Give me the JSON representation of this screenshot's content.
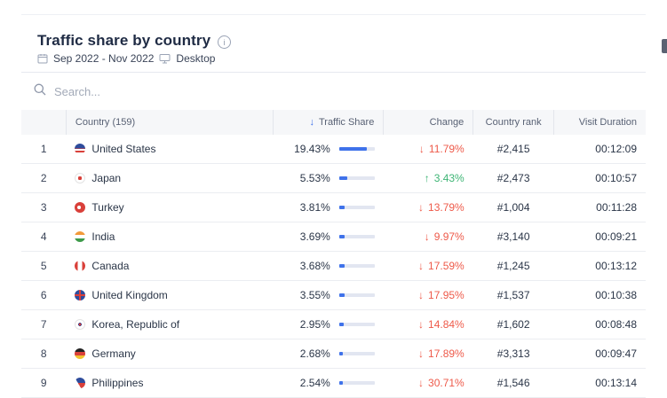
{
  "header": {
    "title": "Traffic share by country",
    "date_range": "Sep 2022 - Nov 2022",
    "device": "Desktop"
  },
  "search": {
    "placeholder": "Search..."
  },
  "table": {
    "columns": [
      "",
      "Country (159)",
      "Traffic Share",
      "Change",
      "Country rank",
      "Visit Duration"
    ],
    "sort_arrow": "↓",
    "rows": [
      {
        "idx": "1",
        "country": "United States",
        "flag": "us",
        "share": "19.43%",
        "share_value": 19.43,
        "change": "11.79%",
        "direction": "down",
        "rank": "#2,415",
        "visit": "00:12:09"
      },
      {
        "idx": "2",
        "country": "Japan",
        "flag": "jp",
        "share": "5.53%",
        "share_value": 5.53,
        "change": "3.43%",
        "direction": "up",
        "rank": "#2,473",
        "visit": "00:10:57"
      },
      {
        "idx": "3",
        "country": "Turkey",
        "flag": "tr",
        "share": "3.81%",
        "share_value": 3.81,
        "change": "13.79%",
        "direction": "down",
        "rank": "#1,004",
        "visit": "00:11:28"
      },
      {
        "idx": "4",
        "country": "India",
        "flag": "in",
        "share": "3.69%",
        "share_value": 3.69,
        "change": "9.97%",
        "direction": "down",
        "rank": "#3,140",
        "visit": "00:09:21"
      },
      {
        "idx": "5",
        "country": "Canada",
        "flag": "ca",
        "share": "3.68%",
        "share_value": 3.68,
        "change": "17.59%",
        "direction": "down",
        "rank": "#1,245",
        "visit": "00:13:12"
      },
      {
        "idx": "6",
        "country": "United Kingdom",
        "flag": "gb",
        "share": "3.55%",
        "share_value": 3.55,
        "change": "17.95%",
        "direction": "down",
        "rank": "#1,537",
        "visit": "00:10:38"
      },
      {
        "idx": "7",
        "country": "Korea, Republic of",
        "flag": "kr",
        "share": "2.95%",
        "share_value": 2.95,
        "change": "14.84%",
        "direction": "down",
        "rank": "#1,602",
        "visit": "00:08:48"
      },
      {
        "idx": "8",
        "country": "Germany",
        "flag": "de",
        "share": "2.68%",
        "share_value": 2.68,
        "change": "17.89%",
        "direction": "down",
        "rank": "#3,313",
        "visit": "00:09:47"
      },
      {
        "idx": "9",
        "country": "Philippines",
        "flag": "ph",
        "share": "2.54%",
        "share_value": 2.54,
        "change": "30.71%",
        "direction": "down",
        "rank": "#1,546",
        "visit": "00:13:14"
      }
    ]
  },
  "colors": {
    "accent": "#3f72ea",
    "negative": "#ee5a4a",
    "positive": "#3eb575"
  }
}
